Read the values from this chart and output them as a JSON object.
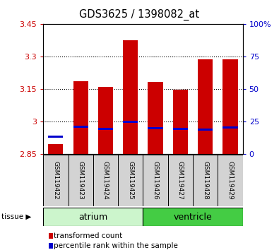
{
  "title": "GDS3625 / 1398082_at",
  "samples": [
    "GSM119422",
    "GSM119423",
    "GSM119424",
    "GSM119425",
    "GSM119426",
    "GSM119427",
    "GSM119428",
    "GSM119429"
  ],
  "bar_tops": [
    2.895,
    3.185,
    3.16,
    3.375,
    3.18,
    3.145,
    3.285,
    3.285
  ],
  "bar_bottom": 2.85,
  "percentile_values": [
    2.928,
    2.975,
    2.965,
    2.998,
    2.967,
    2.966,
    2.963,
    2.972
  ],
  "ylim_left": [
    2.85,
    3.45
  ],
  "yticks_left": [
    2.85,
    3.0,
    3.15,
    3.3,
    3.45
  ],
  "ytick_labels_left": [
    "2.85",
    "3",
    "3.15",
    "3.3",
    "3.45"
  ],
  "ylim_right": [
    0,
    100
  ],
  "yticks_right": [
    0,
    25,
    50,
    75,
    100
  ],
  "ytick_labels_right": [
    "0",
    "25",
    "50",
    "75",
    "100%"
  ],
  "tissue_groups": [
    {
      "label": "atrium",
      "start": 0,
      "end": 3,
      "color": "#ccf5cc"
    },
    {
      "label": "ventricle",
      "start": 4,
      "end": 7,
      "color": "#44cc44"
    }
  ],
  "bar_color": "#cc0000",
  "blue_color": "#0000cc",
  "bar_width": 0.6,
  "bg_color": "#ffffff",
  "legend_items": [
    {
      "color": "#cc0000",
      "label": "transformed count"
    },
    {
      "color": "#0000cc",
      "label": "percentile rank within the sample"
    }
  ]
}
